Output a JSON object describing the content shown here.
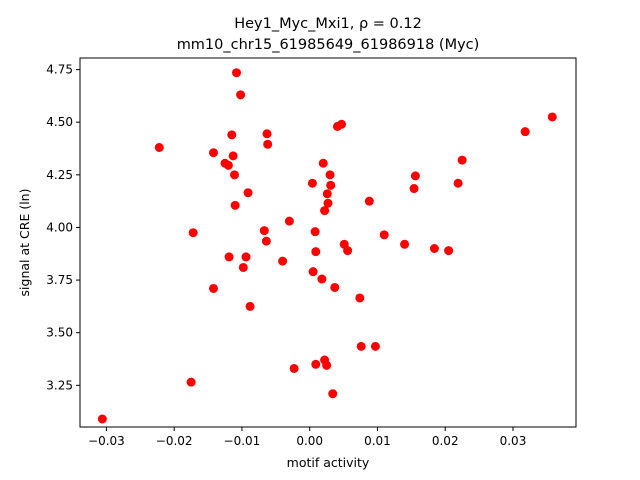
{
  "chart_data": {
    "type": "scatter",
    "title_line1": "Hey1_Myc_Mxi1, ρ = 0.12",
    "title_line2": "mm10_chr15_61985649_61986918 (Myc)",
    "xlabel": "motif activity",
    "ylabel": "signal at CRE (ln)",
    "xlim": [
      -0.0339,
      0.0393
    ],
    "ylim": [
      3.052,
      4.805
    ],
    "x_ticks": [
      {
        "value": -0.03,
        "label": "−0.03"
      },
      {
        "value": -0.02,
        "label": "−0.02"
      },
      {
        "value": -0.01,
        "label": "−0.01"
      },
      {
        "value": 0.0,
        "label": "0.00"
      },
      {
        "value": 0.01,
        "label": "0.01"
      },
      {
        "value": 0.02,
        "label": "0.02"
      },
      {
        "value": 0.03,
        "label": "0.03"
      }
    ],
    "y_ticks": [
      {
        "value": 3.25,
        "label": "3.25"
      },
      {
        "value": 3.5,
        "label": "3.50"
      },
      {
        "value": 3.75,
        "label": "3.75"
      },
      {
        "value": 4.0,
        "label": "4.00"
      },
      {
        "value": 4.25,
        "label": "4.25"
      },
      {
        "value": 4.5,
        "label": "4.50"
      },
      {
        "value": 4.75,
        "label": "4.75"
      }
    ],
    "grid": false,
    "marker_color": "#ff0000",
    "points": [
      {
        "x": -0.0306,
        "y": 3.09
      },
      {
        "x": -0.0222,
        "y": 4.38
      },
      {
        "x": -0.0175,
        "y": 3.265
      },
      {
        "x": -0.0172,
        "y": 3.975
      },
      {
        "x": -0.0142,
        "y": 4.355
      },
      {
        "x": -0.0142,
        "y": 3.71
      },
      {
        "x": -0.0125,
        "y": 4.305
      },
      {
        "x": -0.012,
        "y": 4.295
      },
      {
        "x": -0.0119,
        "y": 3.86
      },
      {
        "x": -0.0115,
        "y": 4.44
      },
      {
        "x": -0.0113,
        "y": 4.34
      },
      {
        "x": -0.0111,
        "y": 4.25
      },
      {
        "x": -0.011,
        "y": 4.105
      },
      {
        "x": -0.0108,
        "y": 4.735
      },
      {
        "x": -0.0102,
        "y": 4.63
      },
      {
        "x": -0.0098,
        "y": 3.81
      },
      {
        "x": -0.0094,
        "y": 3.86
      },
      {
        "x": -0.0091,
        "y": 4.165
      },
      {
        "x": -0.0088,
        "y": 3.625
      },
      {
        "x": -0.0067,
        "y": 3.985
      },
      {
        "x": -0.0064,
        "y": 3.935
      },
      {
        "x": -0.0063,
        "y": 4.445
      },
      {
        "x": -0.0062,
        "y": 4.395
      },
      {
        "x": -0.004,
        "y": 3.84
      },
      {
        "x": -0.003,
        "y": 4.03
      },
      {
        "x": -0.0023,
        "y": 3.33
      },
      {
        "x": 0.0004,
        "y": 4.21
      },
      {
        "x": 0.0005,
        "y": 3.79
      },
      {
        "x": 0.0008,
        "y": 3.98
      },
      {
        "x": 0.0009,
        "y": 3.885
      },
      {
        "x": 0.0009,
        "y": 3.35
      },
      {
        "x": 0.0018,
        "y": 3.755
      },
      {
        "x": 0.002,
        "y": 4.305
      },
      {
        "x": 0.0022,
        "y": 4.08
      },
      {
        "x": 0.0022,
        "y": 3.37
      },
      {
        "x": 0.0025,
        "y": 3.345
      },
      {
        "x": 0.0026,
        "y": 4.16
      },
      {
        "x": 0.0027,
        "y": 4.115
      },
      {
        "x": 0.003,
        "y": 4.25
      },
      {
        "x": 0.0031,
        "y": 4.2
      },
      {
        "x": 0.0034,
        "y": 3.21
      },
      {
        "x": 0.0037,
        "y": 3.715
      },
      {
        "x": 0.0041,
        "y": 4.48
      },
      {
        "x": 0.0047,
        "y": 4.49
      },
      {
        "x": 0.0051,
        "y": 3.92
      },
      {
        "x": 0.0056,
        "y": 3.89
      },
      {
        "x": 0.0074,
        "y": 3.665
      },
      {
        "x": 0.0076,
        "y": 3.435
      },
      {
        "x": 0.0088,
        "y": 4.125
      },
      {
        "x": 0.0097,
        "y": 3.435
      },
      {
        "x": 0.011,
        "y": 3.965
      },
      {
        "x": 0.014,
        "y": 3.92
      },
      {
        "x": 0.0154,
        "y": 4.185
      },
      {
        "x": 0.0156,
        "y": 4.245
      },
      {
        "x": 0.0184,
        "y": 3.9
      },
      {
        "x": 0.0205,
        "y": 3.89
      },
      {
        "x": 0.0219,
        "y": 4.21
      },
      {
        "x": 0.0225,
        "y": 4.32
      },
      {
        "x": 0.0318,
        "y": 4.455
      },
      {
        "x": 0.0358,
        "y": 4.525
      }
    ]
  }
}
